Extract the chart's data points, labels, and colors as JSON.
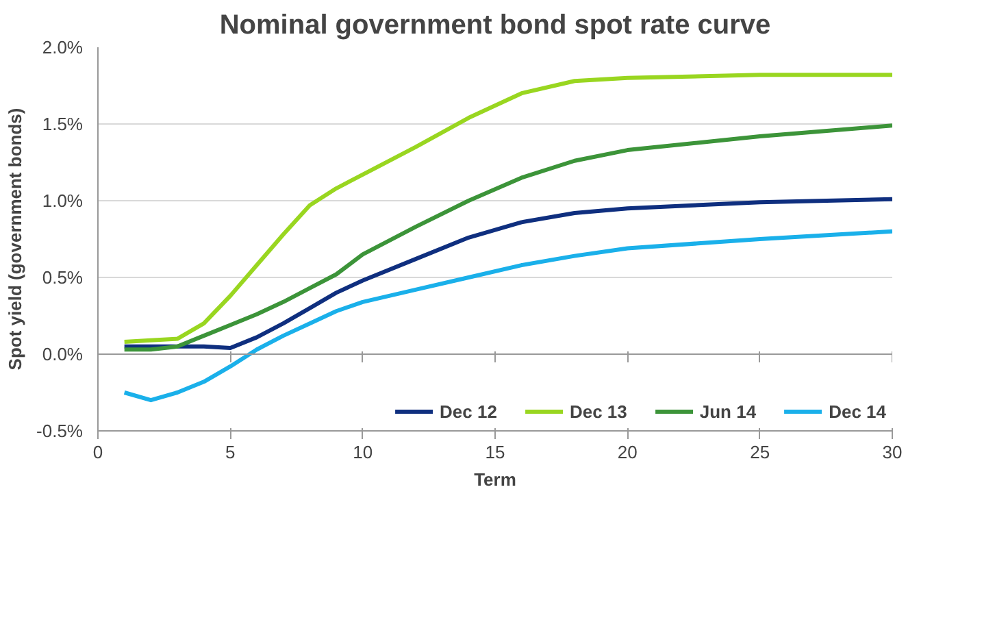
{
  "chart_data": {
    "type": "line",
    "title": "Nominal government bond spot rate curve",
    "xlabel": "Term",
    "ylabel": "Spot yield (government bonds)",
    "x": [
      1,
      2,
      3,
      4,
      5,
      6,
      7,
      8,
      9,
      10,
      12,
      14,
      16,
      18,
      20,
      25,
      30
    ],
    "series": [
      {
        "name": "Dec 12",
        "color": "#0f2f7f",
        "values": [
          0.05,
          0.05,
          0.05,
          0.05,
          0.04,
          0.11,
          0.2,
          0.3,
          0.4,
          0.48,
          0.62,
          0.76,
          0.86,
          0.92,
          0.95,
          0.99,
          1.01
        ]
      },
      {
        "name": "Dec 13",
        "color": "#99d620",
        "values": [
          0.08,
          0.09,
          0.1,
          0.2,
          0.38,
          0.58,
          0.78,
          0.97,
          1.08,
          1.17,
          1.35,
          1.54,
          1.7,
          1.78,
          1.8,
          1.82,
          1.82
        ]
      },
      {
        "name": "Jun 14",
        "color": "#3c9439",
        "values": [
          0.03,
          0.03,
          0.05,
          0.12,
          0.19,
          0.26,
          0.34,
          0.43,
          0.52,
          0.65,
          0.83,
          1.0,
          1.15,
          1.26,
          1.33,
          1.42,
          1.49
        ]
      },
      {
        "name": "Dec 14",
        "color": "#1ab0ea",
        "values": [
          -0.25,
          -0.3,
          -0.25,
          -0.18,
          -0.08,
          0.03,
          0.12,
          0.2,
          0.28,
          0.34,
          0.42,
          0.5,
          0.58,
          0.64,
          0.69,
          0.75,
          0.8
        ]
      }
    ],
    "xlim": [
      0,
      30
    ],
    "xticks": [
      0,
      5,
      10,
      15,
      20,
      25,
      30
    ],
    "ylim": [
      -0.5,
      2.0
    ],
    "yticks": [
      {
        "value": -0.5,
        "label": "-0.5%"
      },
      {
        "value": 0,
        "label": "0.0%"
      },
      {
        "value": 0.5,
        "label": "0.5%"
      },
      {
        "value": 1.0,
        "label": "1.0%"
      },
      {
        "value": 1.5,
        "label": "1.5%"
      },
      {
        "value": 2.0,
        "label": "2.0%"
      }
    ],
    "grid": "y",
    "legend": "bottom",
    "marker": "none",
    "line_style": "solid"
  }
}
